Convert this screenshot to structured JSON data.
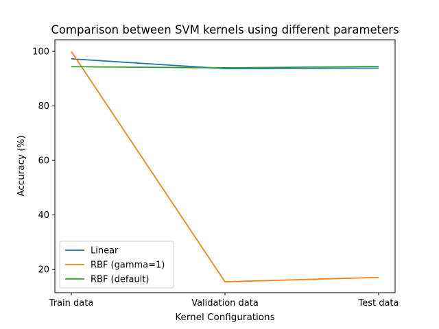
{
  "chart_data": {
    "type": "line",
    "title": "Comparison between SVM kernels using different parameters",
    "xlabel": "Kernel Configurations",
    "ylabel": "Accuracy (%)",
    "categories": [
      "Train data",
      "Validation data",
      "Test data"
    ],
    "ylim": [
      11.5,
      104.3
    ],
    "yticks": [
      20,
      40,
      60,
      80,
      100
    ],
    "grid": false,
    "legend_position": "lower-left",
    "series": [
      {
        "name": "Linear",
        "values": [
          97.3,
          93.7,
          93.9
        ],
        "color": "#1f77b4"
      },
      {
        "name": "RBF (gamma=1)",
        "values": [
          100.0,
          15.5,
          17.1
        ],
        "color": "#ff7f0e"
      },
      {
        "name": "RBF (default)",
        "values": [
          94.4,
          94.0,
          94.5
        ],
        "color": "#2ca02c"
      }
    ]
  }
}
